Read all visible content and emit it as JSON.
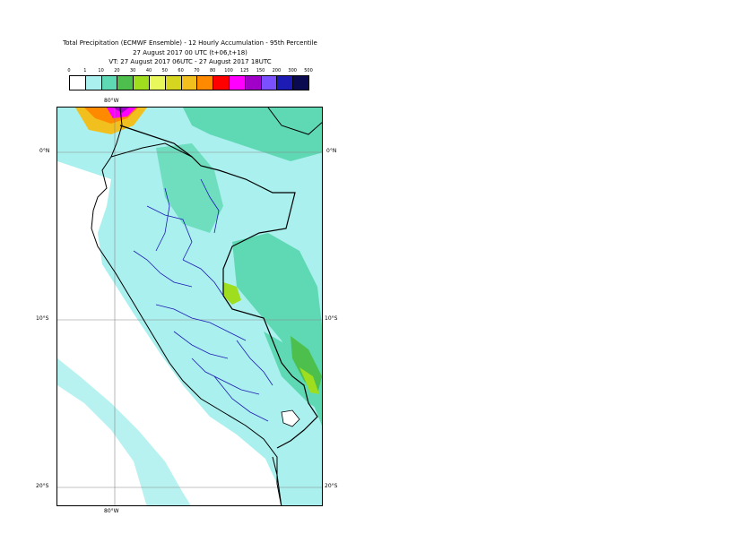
{
  "title": {
    "line1": "Total Precipitation (ECMWF Ensemble) - 12 Hourly Accumulation - 95th Percentile",
    "line2": "27 August 2017 00 UTC (t+06,t+18)",
    "line3": "VT: 27 August 2017 06UTC - 27 August 2017 18UTC"
  },
  "legend": {
    "labels": [
      "0",
      "1",
      "10",
      "20",
      "30",
      "40",
      "50",
      "60",
      "70",
      "80",
      "100",
      "125",
      "150",
      "200",
      "300",
      "500"
    ],
    "colors": [
      "#ffffff",
      "#aaf0ee",
      "#5fd9b3",
      "#4cbf4c",
      "#9ede1e",
      "#e8f85a",
      "#d6d620",
      "#f2c01e",
      "#ff8a00",
      "#ff0000",
      "#ff00ff",
      "#a000c8",
      "#7b50ff",
      "#1c1cb4",
      "#0a0a50"
    ]
  },
  "axes": {
    "lon_top": "80°W",
    "lon_bottom": "80°W",
    "lat_left": [
      "0°N",
      "10°S",
      "20°S"
    ],
    "lat_right": [
      "0°N",
      "10°S",
      "20°S"
    ]
  }
}
